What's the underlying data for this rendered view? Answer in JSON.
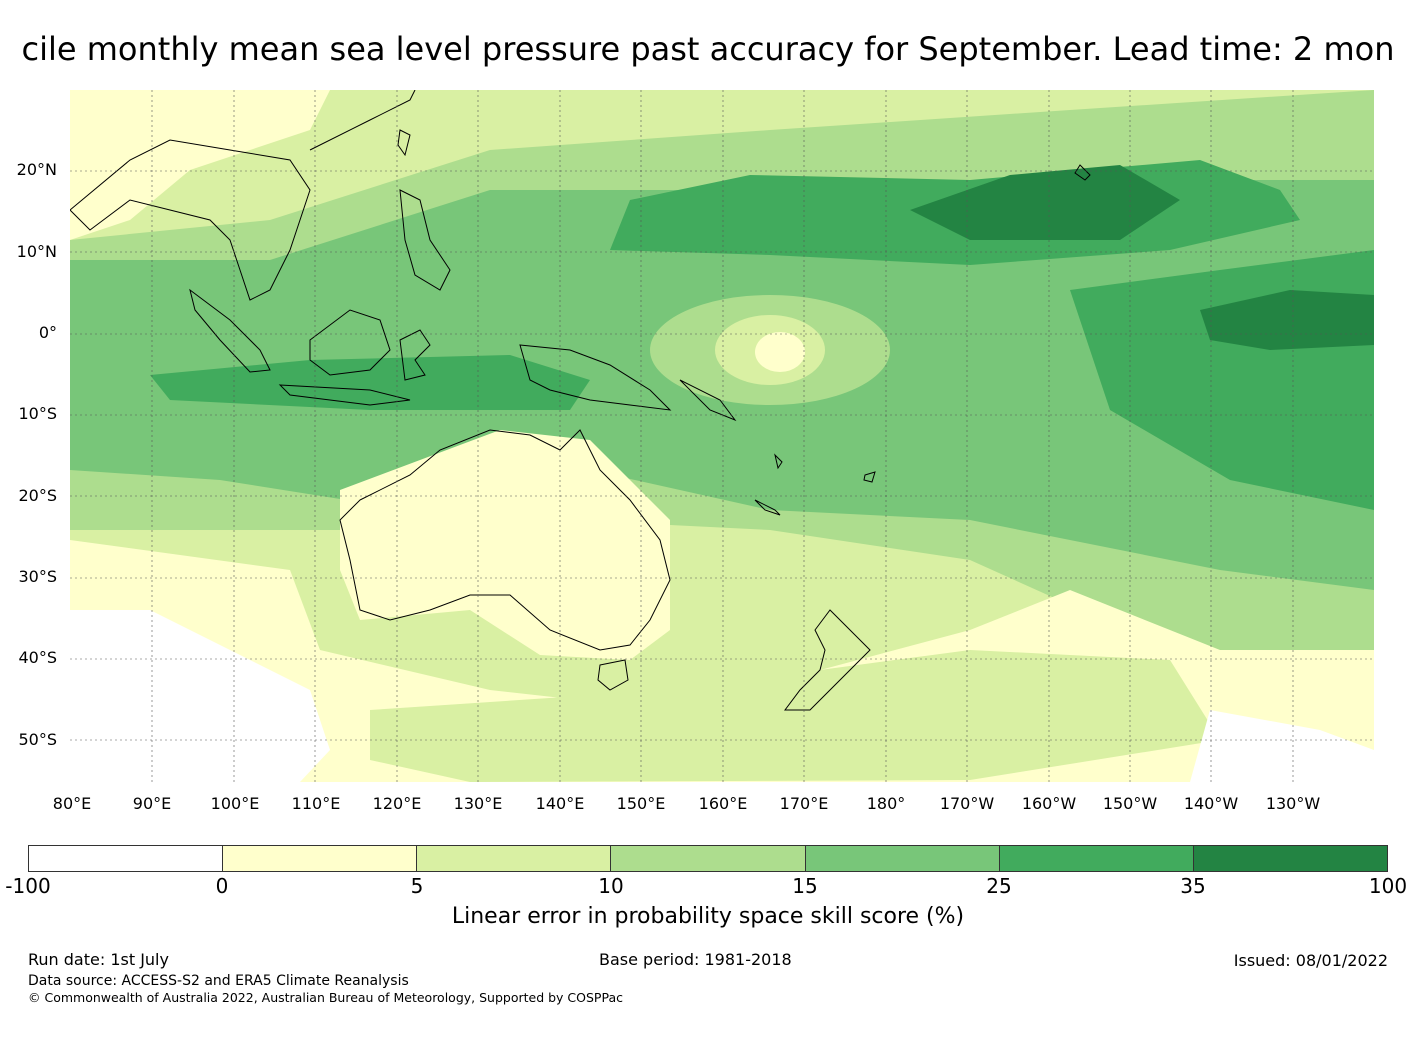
{
  "title": "cile monthly mean sea level pressure past accuracy for September. Lead time: 2 mon",
  "lat_labels": [
    "20°N",
    "10°N",
    "0°",
    "10°S",
    "20°S",
    "30°S",
    "40°S",
    "50°S"
  ],
  "lon_labels": [
    "80°E",
    "90°E",
    "100°E",
    "110°E",
    "120°E",
    "130°E",
    "140°E",
    "150°E",
    "160°E",
    "170°E",
    "180°",
    "170°W",
    "160°W",
    "150°W",
    "140°W",
    "130°W"
  ],
  "colorbar": {
    "colors": [
      "#ffffff",
      "#ffffcc",
      "#d9f0a3",
      "#addd8e",
      "#78c679",
      "#41ab5d",
      "#238443"
    ],
    "ticks": [
      "-100",
      "0",
      "5",
      "10",
      "15",
      "25",
      "35",
      "100"
    ],
    "label": "Linear error in probability space skill score (%)"
  },
  "footer": {
    "run_date": "Run date: 1st July",
    "base_period": "Base period: 1981-2018",
    "issued": "Issued: 08/01/2022",
    "data_source": "Data source: ACCESS-S2 and ERA5 Climate Reanalysis",
    "copyright": "© Commonwealth of Australia 2022, Australian Bureau of Meteorology, Supported by COSPPac"
  }
}
